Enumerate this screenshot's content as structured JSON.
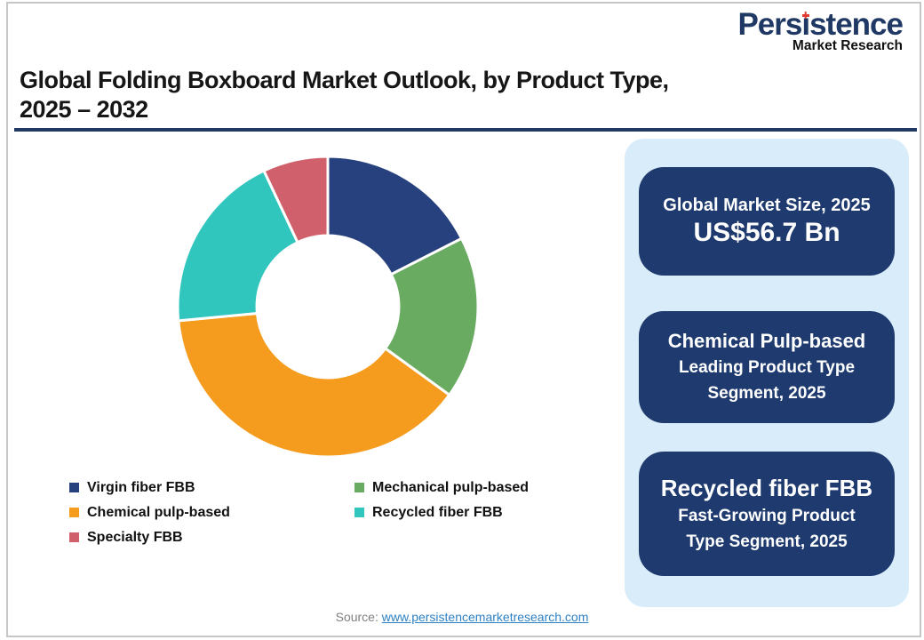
{
  "brand": {
    "name_pre": "Pers",
    "name_i": "ı",
    "name_post": "stence",
    "subtitle": "Market Research",
    "primary_color": "#1f3864",
    "accent_red": "#e03c31"
  },
  "header": {
    "title_line1": "Global Folding Boxboard Market Outlook, by Product Type,",
    "title_line2": "2025 – 2032"
  },
  "chart_data": {
    "type": "pie",
    "subtype": "donut",
    "title": "Global Folding Boxboard Market Outlook, by Product Type, 2025 – 2032",
    "unit": "percent share, estimated from arc angles",
    "categories": [
      "Virgin fiber FBB",
      "Mechanical pulp-based",
      "Chemical pulp-based",
      "Recycled fiber FBB",
      "Specialty FBB"
    ],
    "values": [
      17.5,
      17.5,
      38.5,
      19.5,
      7.0
    ],
    "colors": [
      "#27417e",
      "#6aab62",
      "#f59c1e",
      "#30c5bd",
      "#d0606b"
    ],
    "start_angle_deg": 0,
    "direction": "clockwise",
    "inner_radius_ratio": 0.473,
    "legend_position": "bottom",
    "data_labels": false
  },
  "legend": {
    "items": [
      {
        "label": "Virgin fiber FBB",
        "color": "#27417e"
      },
      {
        "label": "Mechanical pulp-based",
        "color": "#6aab62"
      },
      {
        "label": "Chemical pulp-based",
        "color": "#f59c1e"
      },
      {
        "label": "Recycled fiber FBB",
        "color": "#30c5bd"
      },
      {
        "label": "Specialty FBB",
        "color": "#d0606b"
      }
    ]
  },
  "panel": {
    "background": "#d8ecfa",
    "card_color": "#1e3a6e",
    "cards": [
      {
        "title": "Global Market Size, 2025",
        "value": "US$56.7 Bn"
      },
      {
        "title": "Chemical Pulp-based",
        "line1": "Leading Product Type",
        "line2": "Segment, 2025"
      },
      {
        "title": "Recycled fiber FBB",
        "line1": "Fast-Growing Product",
        "line2": "Type Segment, 2025"
      }
    ]
  },
  "footer": {
    "source_label": "Source:",
    "source_link": "www.persistencemarketresearch.com"
  }
}
